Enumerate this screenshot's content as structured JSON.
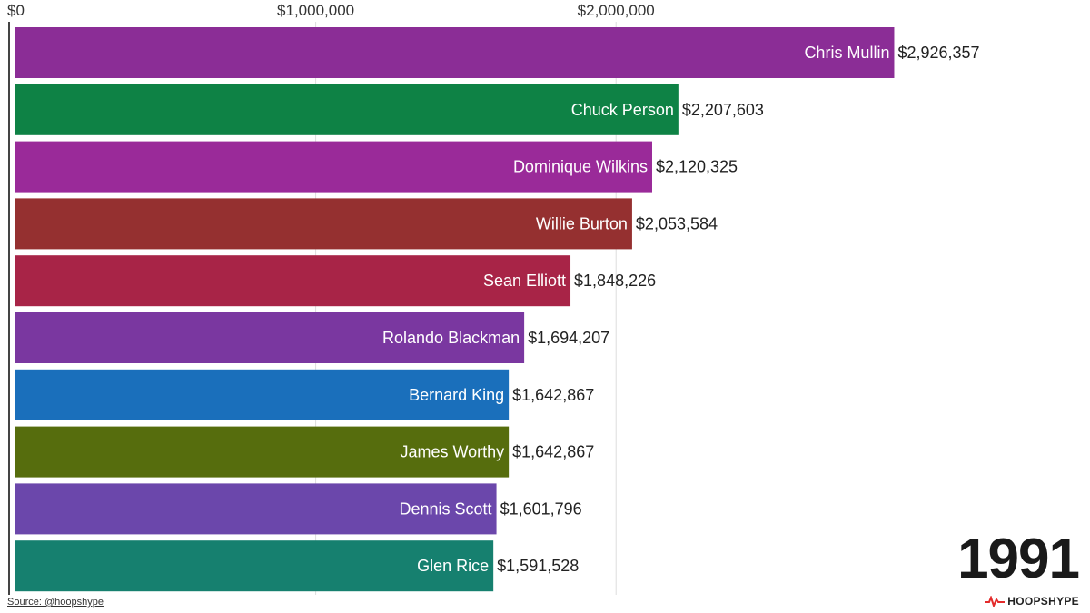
{
  "chart_data": {
    "type": "bar",
    "orientation": "horizontal",
    "categories": [
      "Chris Mullin",
      "Chuck Person",
      "Dominique Wilkins",
      "Willie Burton",
      "Sean Elliott",
      "Rolando Blackman",
      "Bernard King",
      "James Worthy",
      "Dennis Scott",
      "Glen Rice"
    ],
    "values": [
      2926357,
      2207603,
      2120325,
      2053584,
      1848226,
      1694207,
      1642867,
      1642867,
      1601796,
      1591528
    ],
    "value_labels": [
      "$2,926,357",
      "$2,207,603",
      "$2,120,325",
      "$2,053,584",
      "$1,848,226",
      "$1,694,207",
      "$1,642,867",
      "$1,642,867",
      "$1,601,796",
      "$1,591,528"
    ],
    "colors": [
      "#8b2d96",
      "#0e8245",
      "#9a2a99",
      "#953030",
      "#a82447",
      "#7a37a0",
      "#1a6fbb",
      "#566d0d",
      "#6b47ab",
      "#16806f"
    ],
    "xlim": [
      0,
      3300000
    ],
    "xticks": [
      0,
      1000000,
      2000000
    ],
    "xtick_labels": [
      "$0",
      "$1,000,000",
      "$2,000,000"
    ],
    "grid": true,
    "year": "1991"
  },
  "footer": {
    "source": "Source: @hoopshype",
    "logo_text": "HOOPSHYPE"
  },
  "colors": {
    "logo_accent": "#e32b2b"
  }
}
